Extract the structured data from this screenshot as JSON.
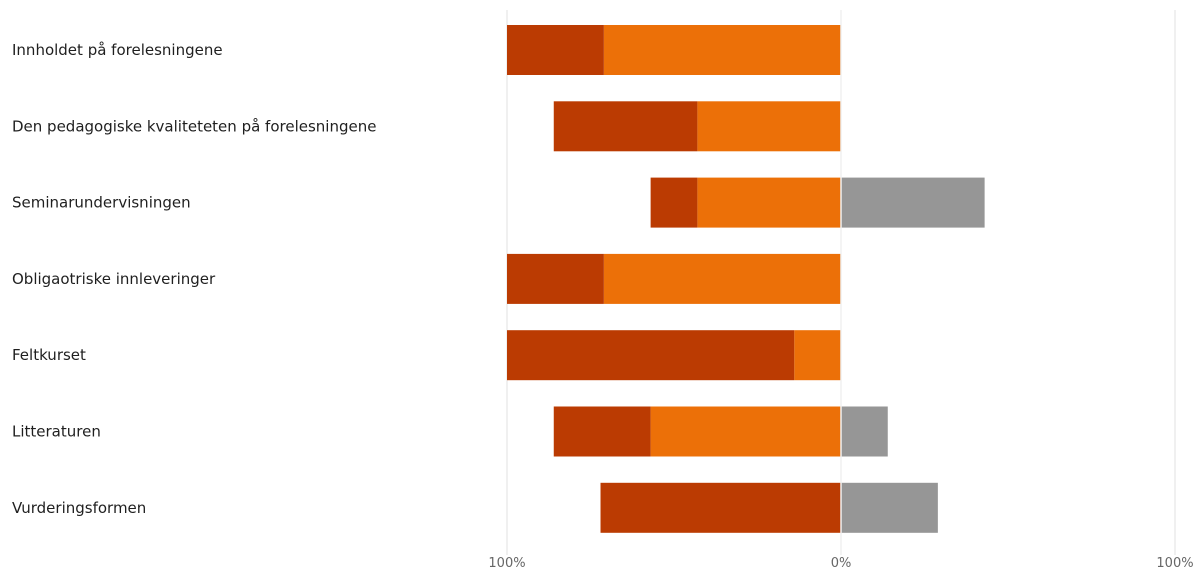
{
  "chart_data": {
    "type": "bar",
    "orientation": "horizontal",
    "stacking": "diverging",
    "categories": [
      "Innholdet på forelesningene",
      "Den pedagogiske kvaliteteten på forelesningene",
      "Seminarundervisningen",
      "Obligaotriske innleveringer",
      "Feltkurset",
      "Litteraturen",
      "Vurderingsformen"
    ],
    "series": [
      {
        "side": "negative",
        "color": "#bb3b02",
        "values": [
          29,
          43,
          14,
          29,
          86,
          29,
          72
        ]
      },
      {
        "side": "negative",
        "color": "#ec7008",
        "values": [
          71,
          43,
          43,
          71,
          14,
          57,
          0
        ]
      },
      {
        "side": "positive",
        "color": "#969696",
        "values": [
          0,
          0,
          43,
          0,
          0,
          14,
          29
        ]
      }
    ],
    "xlim": [
      -100,
      100
    ],
    "tick_labels": [
      "100%",
      "0%",
      "100%"
    ],
    "grid": true,
    "legend": "none"
  }
}
